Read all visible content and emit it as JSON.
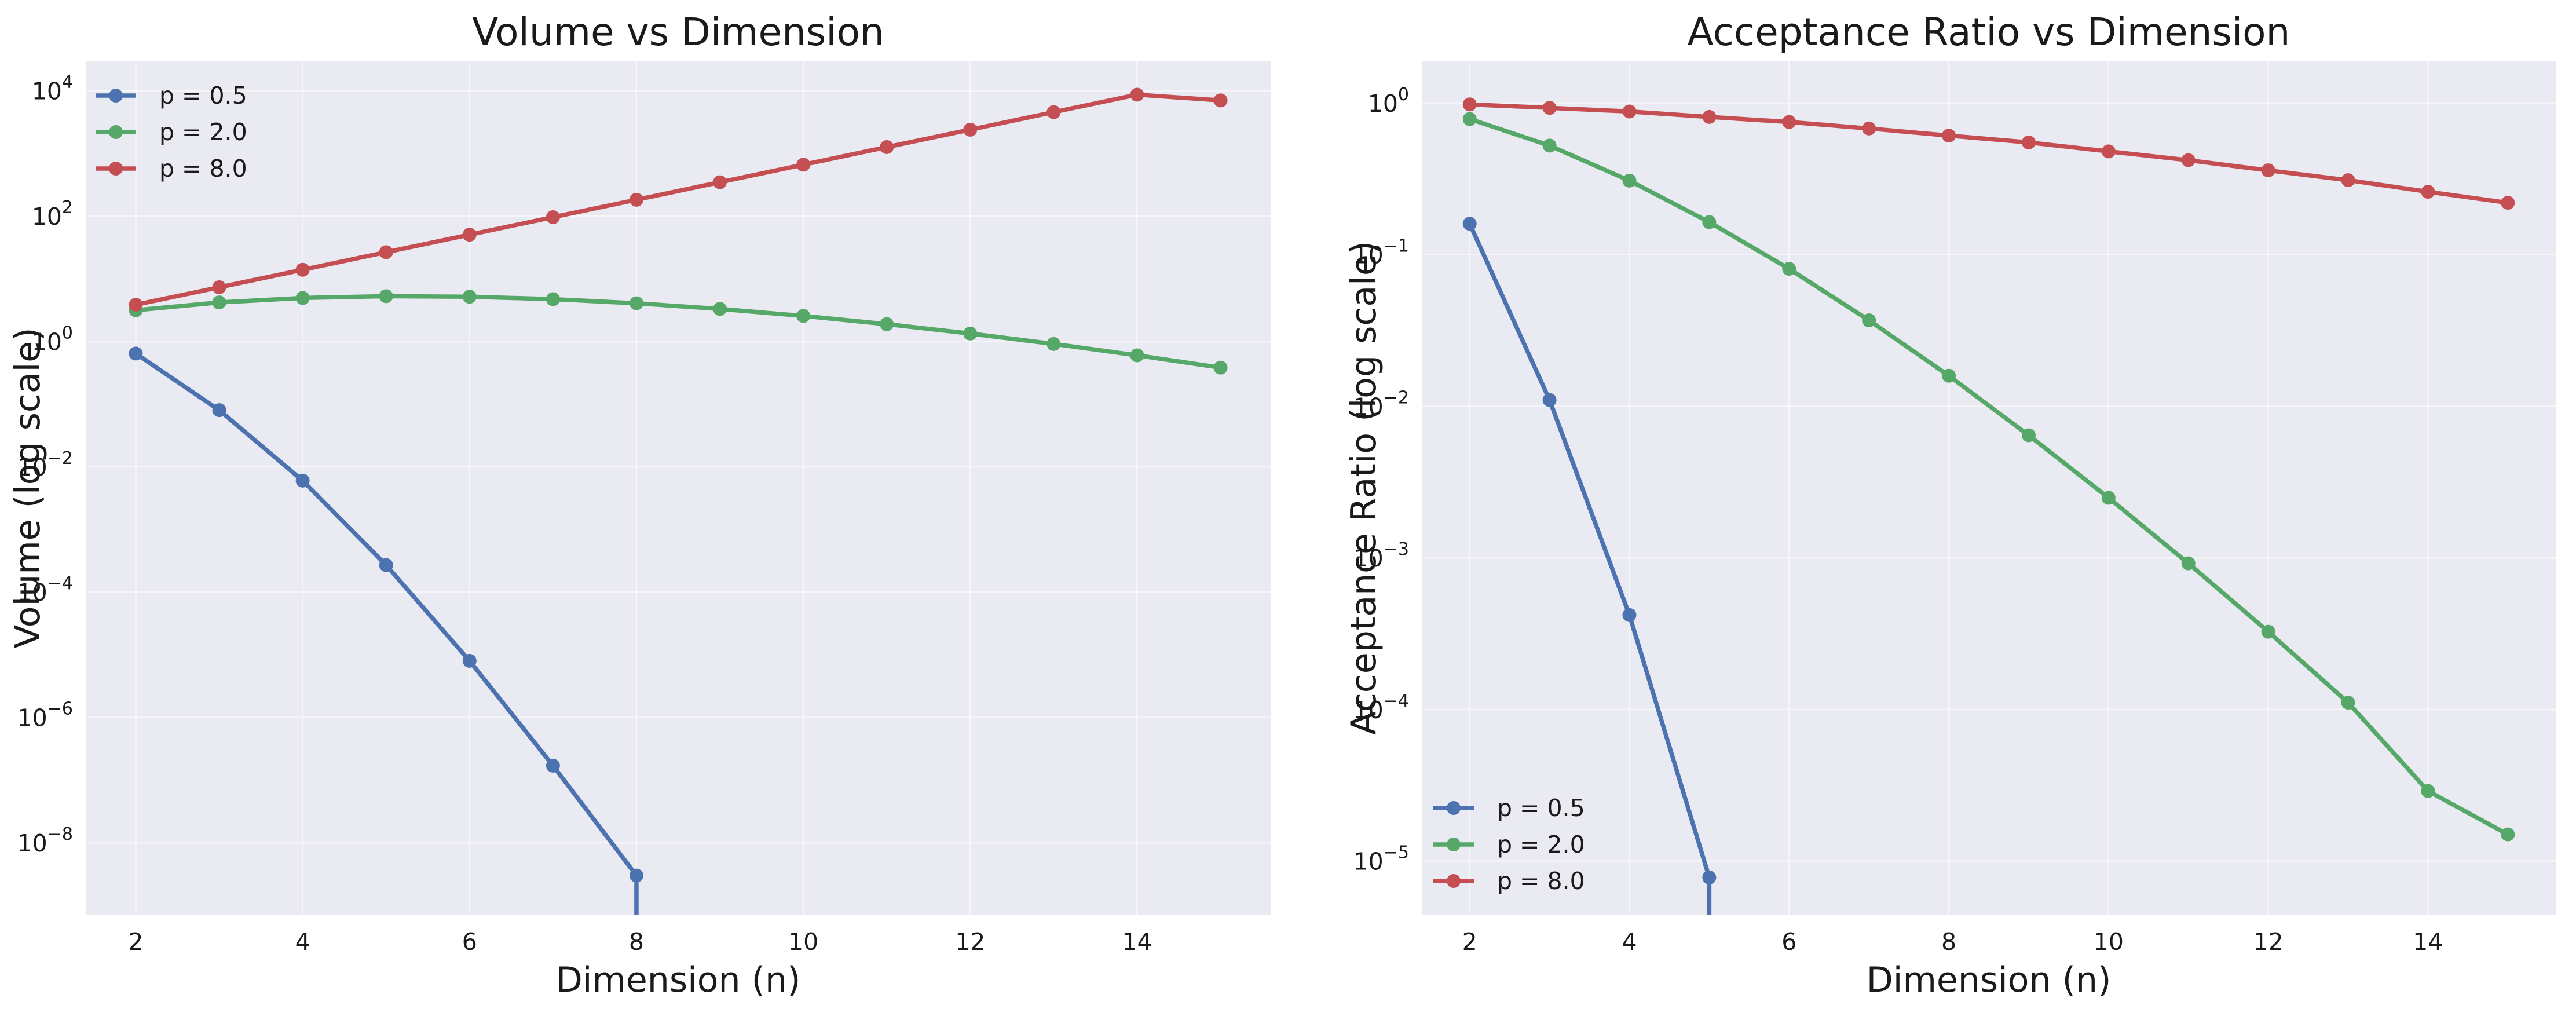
{
  "chart_data": [
    {
      "type": "line",
      "title": "Volume vs Dimension",
      "xlabel": "Dimension (n)",
      "ylabel": "Volume (log scale)",
      "yscale": "log",
      "xlim": [
        1.4,
        15.6
      ],
      "ylim": [
        7e-10,
        30000
      ],
      "xticks": [
        2,
        4,
        6,
        8,
        10,
        12,
        14
      ],
      "yticks": [
        {
          "value": 10000.0,
          "base": "10",
          "exp": "4"
        },
        {
          "value": 100.0,
          "base": "10",
          "exp": "2"
        },
        {
          "value": 1,
          "base": "10",
          "exp": "0"
        },
        {
          "value": 0.01,
          "base": "10",
          "exp": "−2"
        },
        {
          "value": 0.0001,
          "base": "10",
          "exp": "−4"
        },
        {
          "value": 1e-06,
          "base": "10",
          "exp": "−6"
        },
        {
          "value": 1e-08,
          "base": "10",
          "exp": "−8"
        }
      ],
      "grid": true,
      "legend_position": "top-left",
      "series": [
        {
          "name": "p = 0.5",
          "color": "#4c72b0",
          "x": [
            2,
            3,
            4,
            5,
            6,
            7,
            8
          ],
          "y": [
            0.64,
            0.08,
            0.006,
            0.00027,
            8e-06,
            1.7e-07,
            3e-09
          ],
          "continues_below_axis": true
        },
        {
          "name": "p = 2.0",
          "color": "#55a868",
          "x": [
            2,
            3,
            4,
            5,
            6,
            7,
            8,
            9,
            10,
            11,
            12,
            13,
            14,
            15
          ],
          "y": [
            3.1416,
            4.1888,
            4.9348,
            5.2638,
            5.1677,
            4.7248,
            4.0587,
            3.2985,
            2.5502,
            1.8841,
            1.3353,
            0.9106,
            0.5993,
            0.3814
          ]
        },
        {
          "name": "p = 8.0",
          "color": "#c44e52",
          "x": [
            2,
            3,
            4,
            5,
            6,
            7,
            8,
            9,
            10,
            11,
            12,
            13,
            14,
            15
          ],
          "y": [
            3.85,
            7.3,
            13.9,
            26.5,
            50.4,
            96,
            182,
            347,
            660,
            1260,
            2390,
            4550,
            8650,
            7000
          ]
        }
      ]
    },
    {
      "type": "line",
      "title": "Acceptance Ratio vs Dimension",
      "xlabel": "Dimension (n)",
      "ylabel": "Acceptance Ratio (log scale)",
      "yscale": "log",
      "xlim": [
        1.4,
        15.6
      ],
      "ylim": [
        4.4e-06,
        1.9
      ],
      "xticks": [
        2,
        4,
        6,
        8,
        10,
        12,
        14
      ],
      "yticks": [
        {
          "value": 1,
          "base": "10",
          "exp": "0"
        },
        {
          "value": 0.1,
          "base": "10",
          "exp": "−1"
        },
        {
          "value": 0.01,
          "base": "10",
          "exp": "−2"
        },
        {
          "value": 0.001,
          "base": "10",
          "exp": "−3"
        },
        {
          "value": 0.0001,
          "base": "10",
          "exp": "−4"
        },
        {
          "value": 1e-05,
          "base": "10",
          "exp": "−5"
        }
      ],
      "grid": true,
      "legend_position": "bottom-left",
      "series": [
        {
          "name": "p = 0.5",
          "color": "#4c72b0",
          "x": [
            2,
            3,
            4,
            5
          ],
          "y": [
            0.16,
            0.011,
            0.00042,
            7.8e-06
          ],
          "continues_below_axis": true
        },
        {
          "name": "p = 2.0",
          "color": "#55a868",
          "x": [
            2,
            3,
            4,
            5,
            6,
            7,
            8,
            9,
            10,
            11,
            12,
            13,
            14,
            15
          ],
          "y": [
            0.785,
            0.524,
            0.308,
            0.164,
            0.0807,
            0.0369,
            0.0159,
            0.00644,
            0.00249,
            0.00092,
            0.000326,
            0.000111,
            2.9e-05,
            1.5e-05
          ]
        },
        {
          "name": "p = 8.0",
          "color": "#c44e52",
          "x": [
            2,
            3,
            4,
            5,
            6,
            7,
            8,
            9,
            10,
            11,
            12,
            13,
            14,
            15
          ],
          "y": [
            0.98,
            0.93,
            0.88,
            0.81,
            0.75,
            0.68,
            0.61,
            0.55,
            0.48,
            0.42,
            0.36,
            0.31,
            0.26,
            0.22
          ]
        }
      ]
    }
  ]
}
